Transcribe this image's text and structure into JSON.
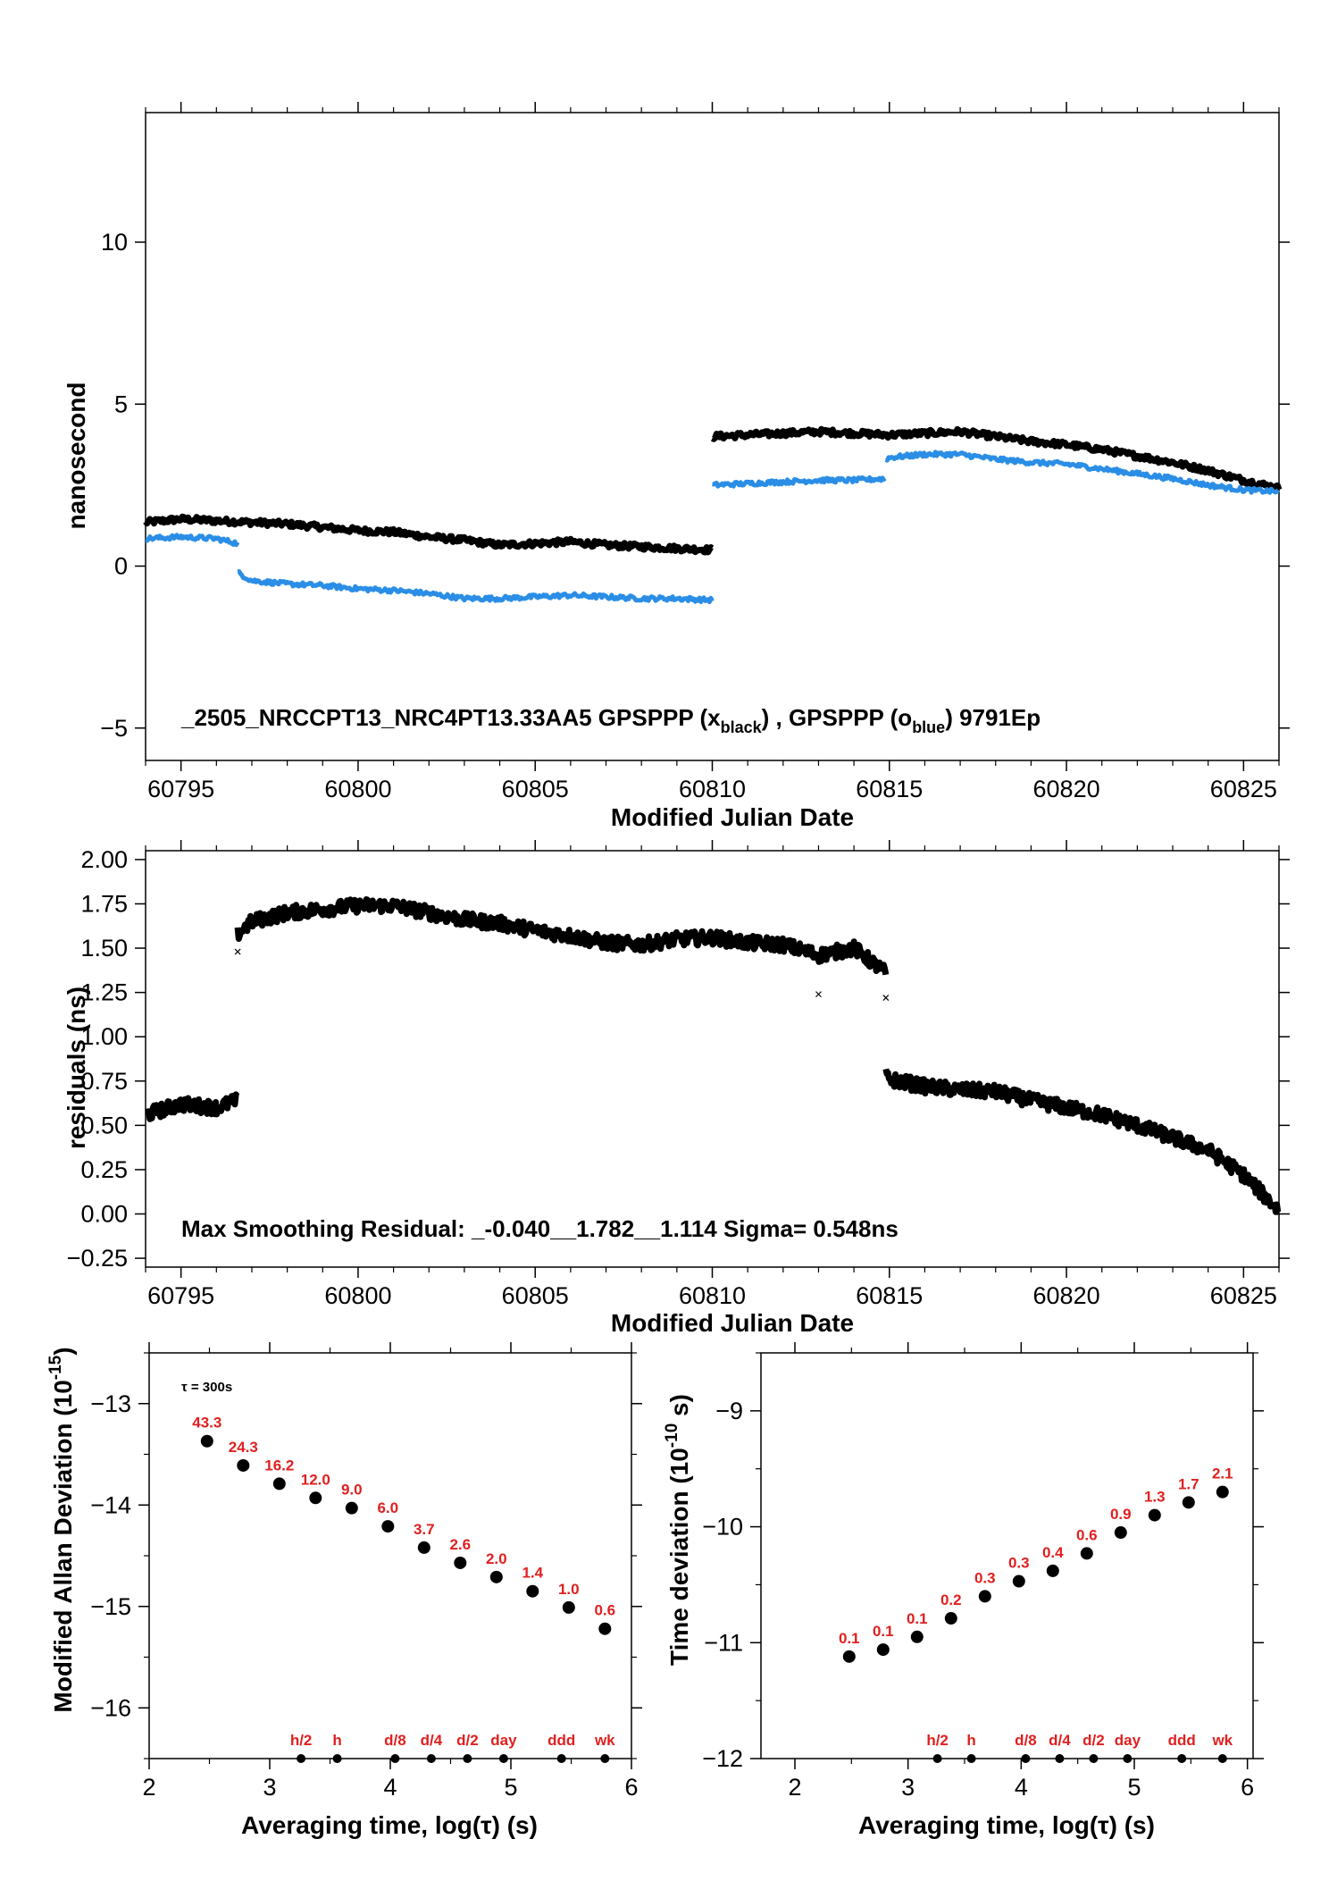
{
  "colors": {
    "black_series": "#000000",
    "blue_series": "#2b8ee6",
    "red_label": "#e02020"
  },
  "chart_data": [
    {
      "id": "clock",
      "type": "scatter",
      "xlabel": "Modified Julian Date",
      "ylabel": "nanosecond",
      "xlim": [
        60794,
        60826
      ],
      "ylim": [
        -6,
        14
      ],
      "xticks": [
        60795,
        60800,
        60805,
        60810,
        60815,
        60820,
        60825
      ],
      "yticks": [
        -5,
        0,
        5,
        10
      ],
      "annotation": {
        "prefix": "_2505_NRCCPT13_NRC4PT13.33AA5    GPSPPP (x",
        "sub1": "black",
        "mid": ") ,  GPSPPP (o",
        "sub2": "blue",
        "suffix": ")  9791Ep"
      },
      "series": [
        {
          "marker": "x",
          "color": "#000000",
          "segments": [
            {
              "x": [
                60794,
                60795,
                60796,
                60797,
                60798,
                60799,
                60800,
                60801,
                60802,
                60803,
                60804,
                60805,
                60806,
                60807,
                60808,
                60809,
                60810
              ],
              "y": [
                1.35,
                1.45,
                1.4,
                1.35,
                1.3,
                1.2,
                1.1,
                1.05,
                0.9,
                0.8,
                0.65,
                0.7,
                0.75,
                0.65,
                0.6,
                0.55,
                0.5
              ]
            },
            {
              "x": [
                60810,
                60811,
                60812,
                60813,
                60814,
                60815,
                60816,
                60817,
                60818,
                60819,
                60820,
                60821,
                60822,
                60823,
                60824,
                60825,
                60826
              ],
              "y": [
                4.0,
                4.05,
                4.1,
                4.15,
                4.1,
                4.05,
                4.1,
                4.15,
                4.0,
                3.85,
                3.75,
                3.6,
                3.4,
                3.2,
                2.95,
                2.65,
                2.4
              ]
            }
          ]
        },
        {
          "marker": "o",
          "color": "#2b8ee6",
          "segments": [
            {
              "x": [
                60794,
                60795,
                60796,
                60796.6
              ],
              "y": [
                0.85,
                0.9,
                0.85,
                0.7
              ]
            },
            {
              "x": [
                60796.6,
                60797,
                60798,
                60799,
                60800,
                60801,
                60802,
                60803,
                60804,
                60805,
                60806,
                60807,
                60808,
                60809,
                60810
              ],
              "y": [
                -0.2,
                -0.45,
                -0.55,
                -0.6,
                -0.7,
                -0.75,
                -0.85,
                -1.0,
                -1.0,
                -0.95,
                -0.9,
                -0.95,
                -1.0,
                -1.0,
                -1.05
              ]
            },
            {
              "x": [
                60810,
                60811,
                60812,
                60813,
                60814,
                60814.9
              ],
              "y": [
                2.5,
                2.55,
                2.6,
                2.65,
                2.65,
                2.7
              ]
            },
            {
              "x": [
                60814.9,
                60815,
                60816,
                60817,
                60818,
                60819,
                60820,
                60821,
                60822,
                60823,
                60824,
                60825,
                60826
              ],
              "y": [
                3.3,
                3.35,
                3.45,
                3.45,
                3.3,
                3.2,
                3.15,
                3.0,
                2.85,
                2.7,
                2.5,
                2.35,
                2.3
              ]
            }
          ]
        }
      ]
    },
    {
      "id": "residuals",
      "type": "scatter",
      "xlabel": "Modified Julian Date",
      "ylabel": "residuals (ns)",
      "xlim": [
        60794,
        60826
      ],
      "ylim": [
        -0.3,
        2.05
      ],
      "xticks": [
        60795,
        60800,
        60805,
        60810,
        60815,
        60820,
        60825
      ],
      "yticks": [
        -0.25,
        0.0,
        0.25,
        0.5,
        0.75,
        1.0,
        1.25,
        1.5,
        1.75,
        2.0
      ],
      "ytick_labels": [
        "−0.25",
        "0.00",
        "0.25",
        "0.50",
        "0.75",
        "1.00",
        "1.25",
        "1.50",
        "1.75",
        "2.00"
      ],
      "annotation": "Max Smoothing Residual: _-0.040__1.782__1.114  Sigma= 0.548ns",
      "series": [
        {
          "marker": "x",
          "color": "#000000",
          "segments": [
            {
              "x": [
                60794,
                60795,
                60796,
                60796.6
              ],
              "y": [
                0.56,
                0.62,
                0.6,
                0.64
              ]
            },
            {
              "x": [
                60796.6,
                60797,
                60798,
                60799,
                60800,
                60801,
                60802,
                60803,
                60804,
                60805,
                60806,
                60807,
                60808,
                60809,
                60810,
                60811,
                60812,
                60813,
                60814,
                60814.9
              ],
              "y": [
                1.58,
                1.65,
                1.7,
                1.72,
                1.74,
                1.74,
                1.7,
                1.66,
                1.64,
                1.6,
                1.57,
                1.53,
                1.52,
                1.55,
                1.56,
                1.53,
                1.52,
                1.46,
                1.5,
                1.36
              ]
            },
            {
              "x": [
                60814.9,
                60815,
                60816,
                60817,
                60818,
                60819,
                60820,
                60821,
                60822,
                60823,
                60824,
                60825,
                60826
              ],
              "y": [
                0.78,
                0.76,
                0.72,
                0.7,
                0.69,
                0.64,
                0.6,
                0.56,
                0.5,
                0.43,
                0.36,
                0.22,
                0.02
              ]
            }
          ]
        }
      ],
      "outliers": {
        "x": [
          60796.6,
          60813,
          60814.9
        ],
        "y": [
          1.48,
          1.24,
          1.22
        ]
      }
    },
    {
      "id": "mdev",
      "type": "scatter",
      "xlabel": "Averaging time, log(τ) (s)",
      "ylabel": "Modified Allan Deviation (10",
      "ylabel_exp": "-15",
      "ylabel_end": ")",
      "xlim": [
        2,
        6
      ],
      "ylim": [
        -16.5,
        -12.5
      ],
      "xticks": [
        2,
        3,
        4,
        5,
        6
      ],
      "yticks": [
        -16,
        -15,
        -14,
        -13
      ],
      "ytick_labels": [
        "−16",
        "−15",
        "−14",
        "−13"
      ],
      "tau_note": "τ = 300s",
      "x": [
        2.48,
        2.78,
        3.08,
        3.38,
        3.68,
        3.98,
        4.28,
        4.58,
        4.88,
        5.18,
        5.48,
        5.78
      ],
      "y": [
        -13.37,
        -13.61,
        -13.79,
        -13.93,
        -14.03,
        -14.21,
        -14.42,
        -14.57,
        -14.71,
        -14.85,
        -15.01,
        -15.22
      ],
      "point_labels": [
        "43.3",
        "24.3",
        "16.2",
        "12.0",
        "9.0",
        "6.0",
        "3.7",
        "2.6",
        "2.0",
        "1.4",
        "1.0",
        "0.6"
      ],
      "markers": {
        "x": [
          3.26,
          3.56,
          4.04,
          4.34,
          4.64,
          4.94,
          5.42,
          5.78
        ],
        "labels": [
          "h/2",
          "h",
          "d/8",
          "d/4",
          "d/2",
          "day",
          "ddd",
          "wk"
        ]
      }
    },
    {
      "id": "tdev",
      "type": "scatter",
      "xlabel": "Averaging time, log(τ) (s)",
      "ylabel": "Time deviation (10",
      "ylabel_exp": "-10",
      "ylabel_end": " s)",
      "xlim": [
        1.7,
        6.05
      ],
      "ylim": [
        -12,
        -8.5
      ],
      "xticks": [
        2,
        3,
        4,
        5,
        6
      ],
      "yticks": [
        -12,
        -11,
        -10,
        -9
      ],
      "ytick_labels": [
        "−12",
        "−11",
        "−10",
        "−9"
      ],
      "x": [
        2.48,
        2.78,
        3.08,
        3.38,
        3.68,
        3.98,
        4.28,
        4.58,
        4.88,
        5.18,
        5.48,
        5.78
      ],
      "y": [
        -11.12,
        -11.06,
        -10.95,
        -10.79,
        -10.6,
        -10.47,
        -10.38,
        -10.23,
        -10.05,
        -9.9,
        -9.79,
        -9.7
      ],
      "point_labels": [
        "0.1",
        "0.1",
        "0.1",
        "0.2",
        "0.3",
        "0.3",
        "0.4",
        "0.6",
        "0.9",
        "1.3",
        "1.7",
        "2.1"
      ],
      "markers": {
        "x": [
          3.26,
          3.56,
          4.04,
          4.34,
          4.64,
          4.94,
          5.42,
          5.78
        ],
        "labels": [
          "h/2",
          "h",
          "d/8",
          "d/4",
          "d/2",
          "day",
          "ddd",
          "wk"
        ]
      }
    }
  ]
}
